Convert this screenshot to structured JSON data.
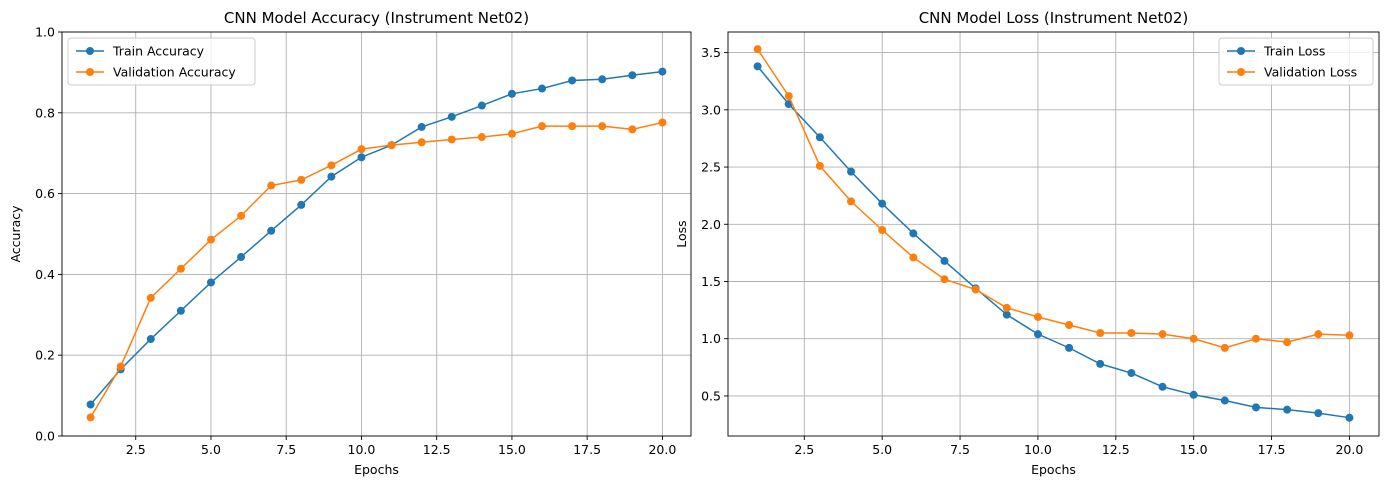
{
  "chart_data": [
    {
      "type": "line",
      "title": "CNN Model Accuracy (Instrument Net02)",
      "xlabel": "Epochs",
      "ylabel": "Accuracy",
      "xlim": [
        0.05,
        20.95
      ],
      "ylim": [
        0.0,
        1.0
      ],
      "xticks": [
        2.5,
        5.0,
        7.5,
        10.0,
        12.5,
        15.0,
        17.5,
        20.0
      ],
      "xtick_labels": [
        "2.5",
        "5.0",
        "7.5",
        "10.0",
        "12.5",
        "15.0",
        "17.5",
        "20.0"
      ],
      "yticks": [
        0.0,
        0.2,
        0.4,
        0.6,
        0.8,
        1.0
      ],
      "ytick_labels": [
        "0.0",
        "0.2",
        "0.4",
        "0.6",
        "0.8",
        "1.0"
      ],
      "grid": true,
      "legend_position": "upper-left",
      "x": [
        1,
        2,
        3,
        4,
        5,
        6,
        7,
        8,
        9,
        10,
        11,
        12,
        13,
        14,
        15,
        16,
        17,
        18,
        19,
        20
      ],
      "series": [
        {
          "name": "Train Accuracy",
          "color": "#1f77b4",
          "values": [
            0.078,
            0.165,
            0.24,
            0.31,
            0.38,
            0.443,
            0.508,
            0.572,
            0.642,
            0.69,
            0.72,
            0.765,
            0.79,
            0.818,
            0.847,
            0.86,
            0.88,
            0.883,
            0.893,
            0.902
          ]
        },
        {
          "name": "Validation Accuracy",
          "color": "#ff7f0e",
          "values": [
            0.046,
            0.172,
            0.342,
            0.414,
            0.486,
            0.545,
            0.62,
            0.634,
            0.67,
            0.71,
            0.72,
            0.727,
            0.734,
            0.74,
            0.748,
            0.767,
            0.767,
            0.767,
            0.759,
            0.776
          ]
        }
      ]
    },
    {
      "type": "line",
      "title": "CNN Model Loss (Instrument Net02)",
      "xlabel": "Epochs",
      "ylabel": "Loss",
      "xlim": [
        0.05,
        20.95
      ],
      "ylim": [
        0.15,
        3.68
      ],
      "xticks": [
        2.5,
        5.0,
        7.5,
        10.0,
        12.5,
        15.0,
        17.5,
        20.0
      ],
      "xtick_labels": [
        "2.5",
        "5.0",
        "7.5",
        "10.0",
        "12.5",
        "15.0",
        "17.5",
        "20.0"
      ],
      "yticks": [
        0.5,
        1.0,
        1.5,
        2.0,
        2.5,
        3.0,
        3.5
      ],
      "ytick_labels": [
        "0.5",
        "1.0",
        "1.5",
        "2.0",
        "2.5",
        "3.0",
        "3.5"
      ],
      "grid": true,
      "legend_position": "upper-right",
      "x": [
        1,
        2,
        3,
        4,
        5,
        6,
        7,
        8,
        9,
        10,
        11,
        12,
        13,
        14,
        15,
        16,
        17,
        18,
        19,
        20
      ],
      "series": [
        {
          "name": "Train Loss",
          "color": "#1f77b4",
          "values": [
            3.38,
            3.05,
            2.76,
            2.46,
            2.18,
            1.92,
            1.68,
            1.44,
            1.21,
            1.04,
            0.92,
            0.78,
            0.7,
            0.58,
            0.51,
            0.46,
            0.4,
            0.38,
            0.35,
            0.31
          ]
        },
        {
          "name": "Validation Loss",
          "color": "#ff7f0e",
          "values": [
            3.53,
            3.12,
            2.51,
            2.2,
            1.95,
            1.71,
            1.52,
            1.43,
            1.27,
            1.19,
            1.12,
            1.05,
            1.05,
            1.04,
            1.0,
            0.92,
            1.0,
            0.97,
            1.04,
            1.03
          ]
        }
      ]
    }
  ]
}
